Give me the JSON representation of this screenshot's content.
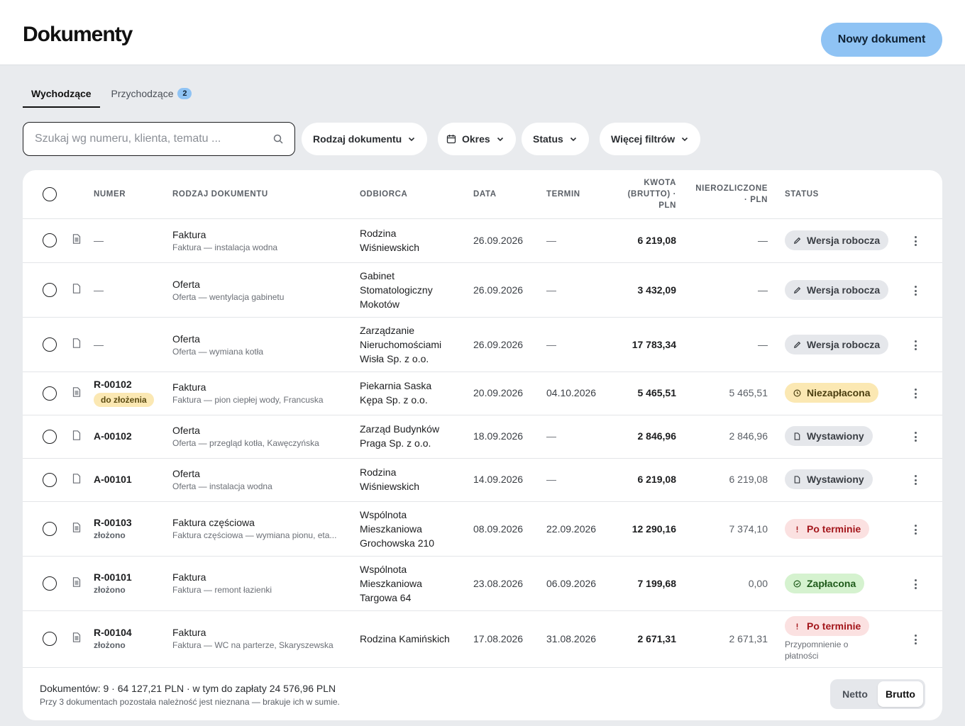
{
  "page": {
    "title": "Dokumenty",
    "new_button": "Nowy dokument"
  },
  "tabs": [
    {
      "label": "Wychodzące",
      "active": true
    },
    {
      "label": "Przychodzące",
      "badge": "2"
    }
  ],
  "search": {
    "placeholder": "Szukaj wg numeru, klienta, tematu ...",
    "value": ""
  },
  "filters": {
    "type": "Rodzaj dokumentu",
    "period": "Okres",
    "status": "Status",
    "more": "Więcej filtrów"
  },
  "table": {
    "headers": {
      "number": "NUMER",
      "type": "RODZAJ DOKUMENTU",
      "recipient": "ODBIORCA",
      "date": "DATA",
      "due": "TERMIN",
      "amount_l1": "KWOTA",
      "amount_l2": "(BRUTTO) ·",
      "amount_l3": "PLN",
      "unsettled_l1": "NIEROZLICZONE",
      "unsettled_l2": "· PLN",
      "status": "STATUS"
    },
    "rows": [
      {
        "number": "—",
        "doc_type": "Faktura",
        "subject": "Faktura — instalacja wodna",
        "recipient": [
          "Rodzina",
          "Wiśniewskich"
        ],
        "date": "26.09.2026",
        "due": "—",
        "amount": "6 219,08",
        "unsettled": "—",
        "status": "Wersja robocza"
      },
      {
        "number": "—",
        "doc_type": "Oferta",
        "subject": "Oferta — wentylacja gabinetu",
        "recipient": [
          "Gabinet",
          "Stomatologiczny",
          "Mokotów"
        ],
        "date": "26.09.2026",
        "due": "—",
        "amount": "3 432,09",
        "unsettled": "—",
        "status": "Wersja robocza"
      },
      {
        "number": "—",
        "doc_type": "Oferta",
        "subject": "Oferta — wymiana kotła",
        "recipient": [
          "Zarządzanie",
          "Nieruchomościami",
          "Wisła Sp. z o.o."
        ],
        "date": "26.09.2026",
        "due": "—",
        "amount": "17 783,34",
        "unsettled": "—",
        "status": "Wersja robocza"
      },
      {
        "number": "R-00102",
        "tag": "do złożenia",
        "doc_type": "Faktura",
        "subject": "Faktura — pion ciepłej wody, Francuska",
        "recipient": [
          "Piekarnia Saska",
          "Kępa Sp. z o.o."
        ],
        "date": "20.09.2026",
        "due": "04.10.2026",
        "amount": "5 465,51",
        "unsettled": "5 465,51",
        "status": "Niezapłacona"
      },
      {
        "number": "A-00102",
        "doc_type": "Oferta",
        "subject": "Oferta — przegląd kotła, Kawęczyńska",
        "recipient": [
          "Zarząd Budynków",
          "Praga Sp. z o.o."
        ],
        "date": "18.09.2026",
        "due": "—",
        "amount": "2 846,96",
        "unsettled": "2 846,96",
        "status": "Wystawiony"
      },
      {
        "number": "A-00101",
        "doc_type": "Oferta",
        "subject": "Oferta — instalacja wodna",
        "recipient": [
          "Rodzina",
          "Wiśniewskich"
        ],
        "date": "14.09.2026",
        "due": "—",
        "amount": "6 219,08",
        "unsettled": "6 219,08",
        "status": "Wystawiony"
      },
      {
        "number": "R-00103",
        "note": "złożono",
        "doc_type": "Faktura częściowa",
        "subject": "Faktura częściowa — wymiana pionu, eta...",
        "recipient": [
          "Wspólnota",
          "Mieszkaniowa",
          "Grochowska 210"
        ],
        "date": "08.09.2026",
        "due": "22.09.2026",
        "amount": "12 290,16",
        "unsettled": "7 374,10",
        "status": "Po terminie"
      },
      {
        "number": "R-00101",
        "note": "złożono",
        "doc_type": "Faktura",
        "subject": "Faktura — remont łazienki",
        "recipient": [
          "Wspólnota",
          "Mieszkaniowa",
          "Targowa 64"
        ],
        "date": "23.08.2026",
        "due": "06.09.2026",
        "amount": "7 199,68",
        "unsettled": "0,00",
        "status": "Zapłacona"
      },
      {
        "number": "R-00104",
        "note": "złożono",
        "doc_type": "Faktura",
        "subject": "Faktura — WC na parterze, Skaryszewska",
        "recipient": [
          "Rodzina Kamińskich"
        ],
        "date": "17.08.2026",
        "due": "31.08.2026",
        "amount": "2 671,31",
        "unsettled": "2 671,31",
        "status": "Po terminie",
        "status_note": [
          "Przypomnienie o",
          "płatności"
        ]
      }
    ]
  },
  "footer": {
    "summary": "Dokumentów: 9 · 64 127,21 PLN · w tym do zapłaty 24 576,96 PLN",
    "note": "Przy 3 dokumentach pozostała należność jest nieznana — brakuje ich w sumie.",
    "toggle": {
      "netto": "Netto",
      "brutto": "Brutto",
      "selected": "Brutto"
    }
  },
  "colors": {
    "accent": "#8fc3f4",
    "background": "#e9ebee",
    "overdue": "#a3161b",
    "paid": "#1e5a1a",
    "unpaid": "#fbe8b3"
  }
}
